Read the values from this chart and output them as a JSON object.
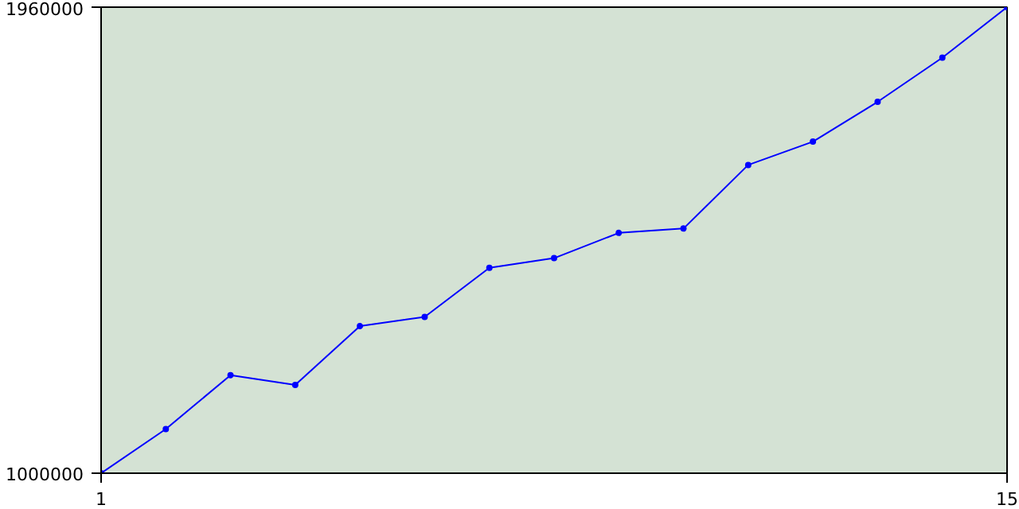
{
  "chart_data": {
    "type": "line",
    "x": [
      1,
      2,
      3,
      4,
      5,
      6,
      7,
      8,
      9,
      10,
      11,
      12,
      13,
      14,
      15
    ],
    "series": [
      {
        "color": "#0000ff",
        "values": [
          1000000,
          1091000,
          1202000,
          1182000,
          1303000,
          1322000,
          1423000,
          1443000,
          1495000,
          1504000,
          1635000,
          1683000,
          1765000,
          1856000,
          1960000
        ]
      }
    ],
    "xlim": [
      1,
      15
    ],
    "ylim": [
      1000000,
      1960000
    ],
    "xticks": [
      1,
      15
    ],
    "yticks": [
      1000000,
      1960000
    ],
    "marker": "circle",
    "line_style": "solid"
  }
}
